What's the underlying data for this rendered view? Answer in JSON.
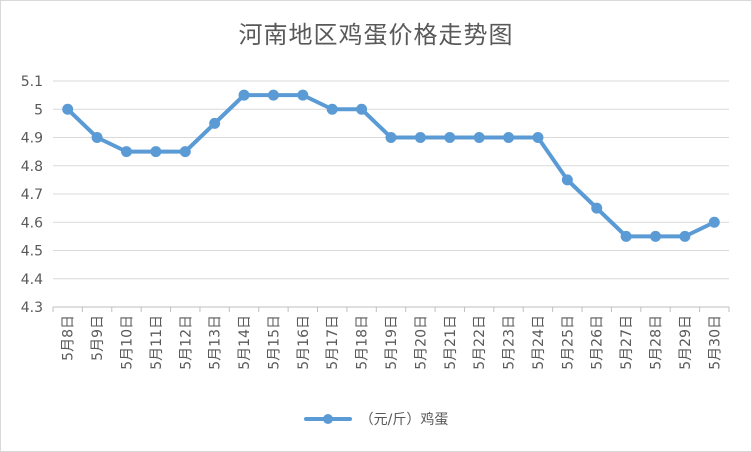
{
  "chart_data": {
    "type": "line",
    "title": "河南地区鸡蛋价格走势图",
    "xlabel": "",
    "ylabel": "",
    "categories": [
      "5月8日",
      "5月9日",
      "5月10日",
      "5月11日",
      "5月12日",
      "5月13日",
      "5月14日",
      "5月15日",
      "5月16日",
      "5月17日",
      "5月18日",
      "5月19日",
      "5月20日",
      "5月21日",
      "5月22日",
      "5月23日",
      "5月24日",
      "5月25日",
      "5月26日",
      "5月27日",
      "5月28日",
      "5月29日",
      "5月30日"
    ],
    "series": [
      {
        "name": "（元/斤）鸡蛋",
        "color": "#5b9bd5",
        "values": [
          5.0,
          4.9,
          4.85,
          4.85,
          4.85,
          4.95,
          5.05,
          5.05,
          5.05,
          5.0,
          5.0,
          4.9,
          4.9,
          4.9,
          4.9,
          4.9,
          4.9,
          4.75,
          4.65,
          4.55,
          4.55,
          4.55,
          4.6
        ]
      }
    ],
    "yticks": [
      "4.3",
      "4.4",
      "4.5",
      "4.6",
      "4.7",
      "4.8",
      "4.9",
      "5",
      "5.1"
    ],
    "ylim": [
      4.3,
      5.1
    ],
    "grid": true,
    "legend": "bottom"
  }
}
